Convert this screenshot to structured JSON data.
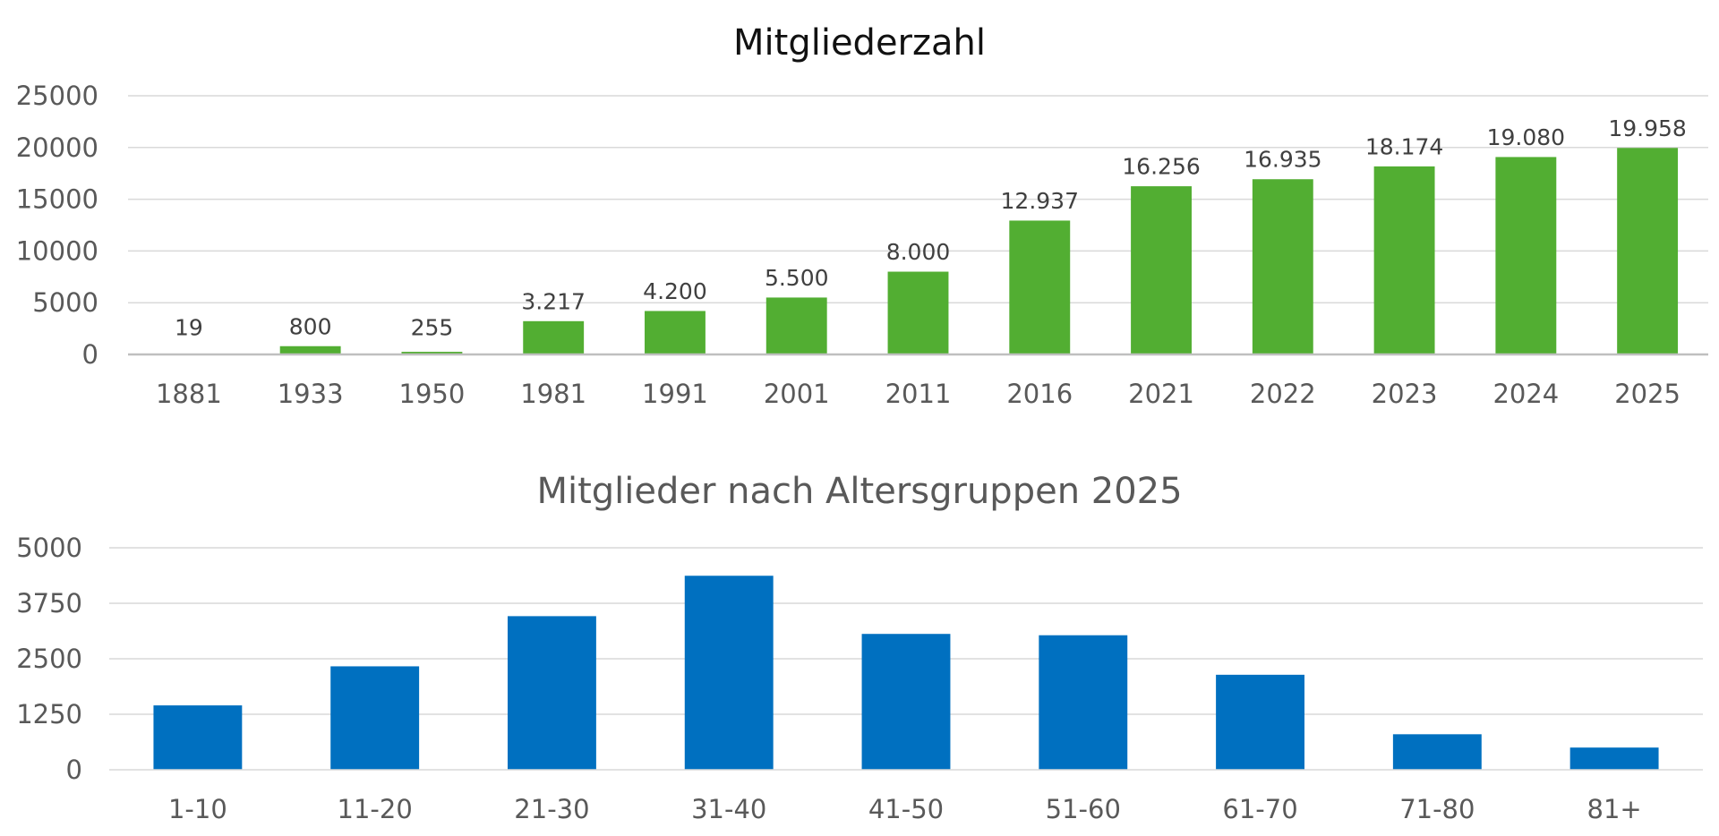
{
  "chart_data": [
    {
      "type": "bar",
      "title": "Mitgliederzahl",
      "categories": [
        "1881",
        "1933",
        "1950",
        "1981",
        "1991",
        "2001",
        "2011",
        "2016",
        "2021",
        "2022",
        "2023",
        "2024",
        "2025"
      ],
      "values": [
        19,
        800,
        255,
        3217,
        4200,
        5500,
        8000,
        12937,
        16256,
        16935,
        18174,
        19080,
        19958
      ],
      "data_labels": [
        "19",
        "800",
        "255",
        "3.217",
        "4.200",
        "5.500",
        "8.000",
        "12.937",
        "16.256",
        "16.935",
        "18.174",
        "19.080",
        "19.958"
      ],
      "yticks": [
        "0",
        "5000",
        "10000",
        "15000",
        "20000",
        "25000"
      ],
      "ylim": [
        0,
        25000
      ],
      "color": "#52AE32",
      "grid": true,
      "legend": "none"
    },
    {
      "type": "bar",
      "title": "Mitglieder nach Altersgruppen 2025",
      "categories": [
        "1-10",
        "11-20",
        "21-30",
        "31-40",
        "41-50",
        "51-60",
        "61-70",
        "71-80",
        "81+"
      ],
      "values": [
        1450,
        2330,
        3460,
        4370,
        3060,
        3030,
        2140,
        800,
        500
      ],
      "yticks": [
        "0",
        "1250",
        "2500",
        "3750",
        "5000"
      ],
      "ylim": [
        0,
        5000
      ],
      "color": "#0070C0",
      "grid": true,
      "legend": "none"
    }
  ]
}
